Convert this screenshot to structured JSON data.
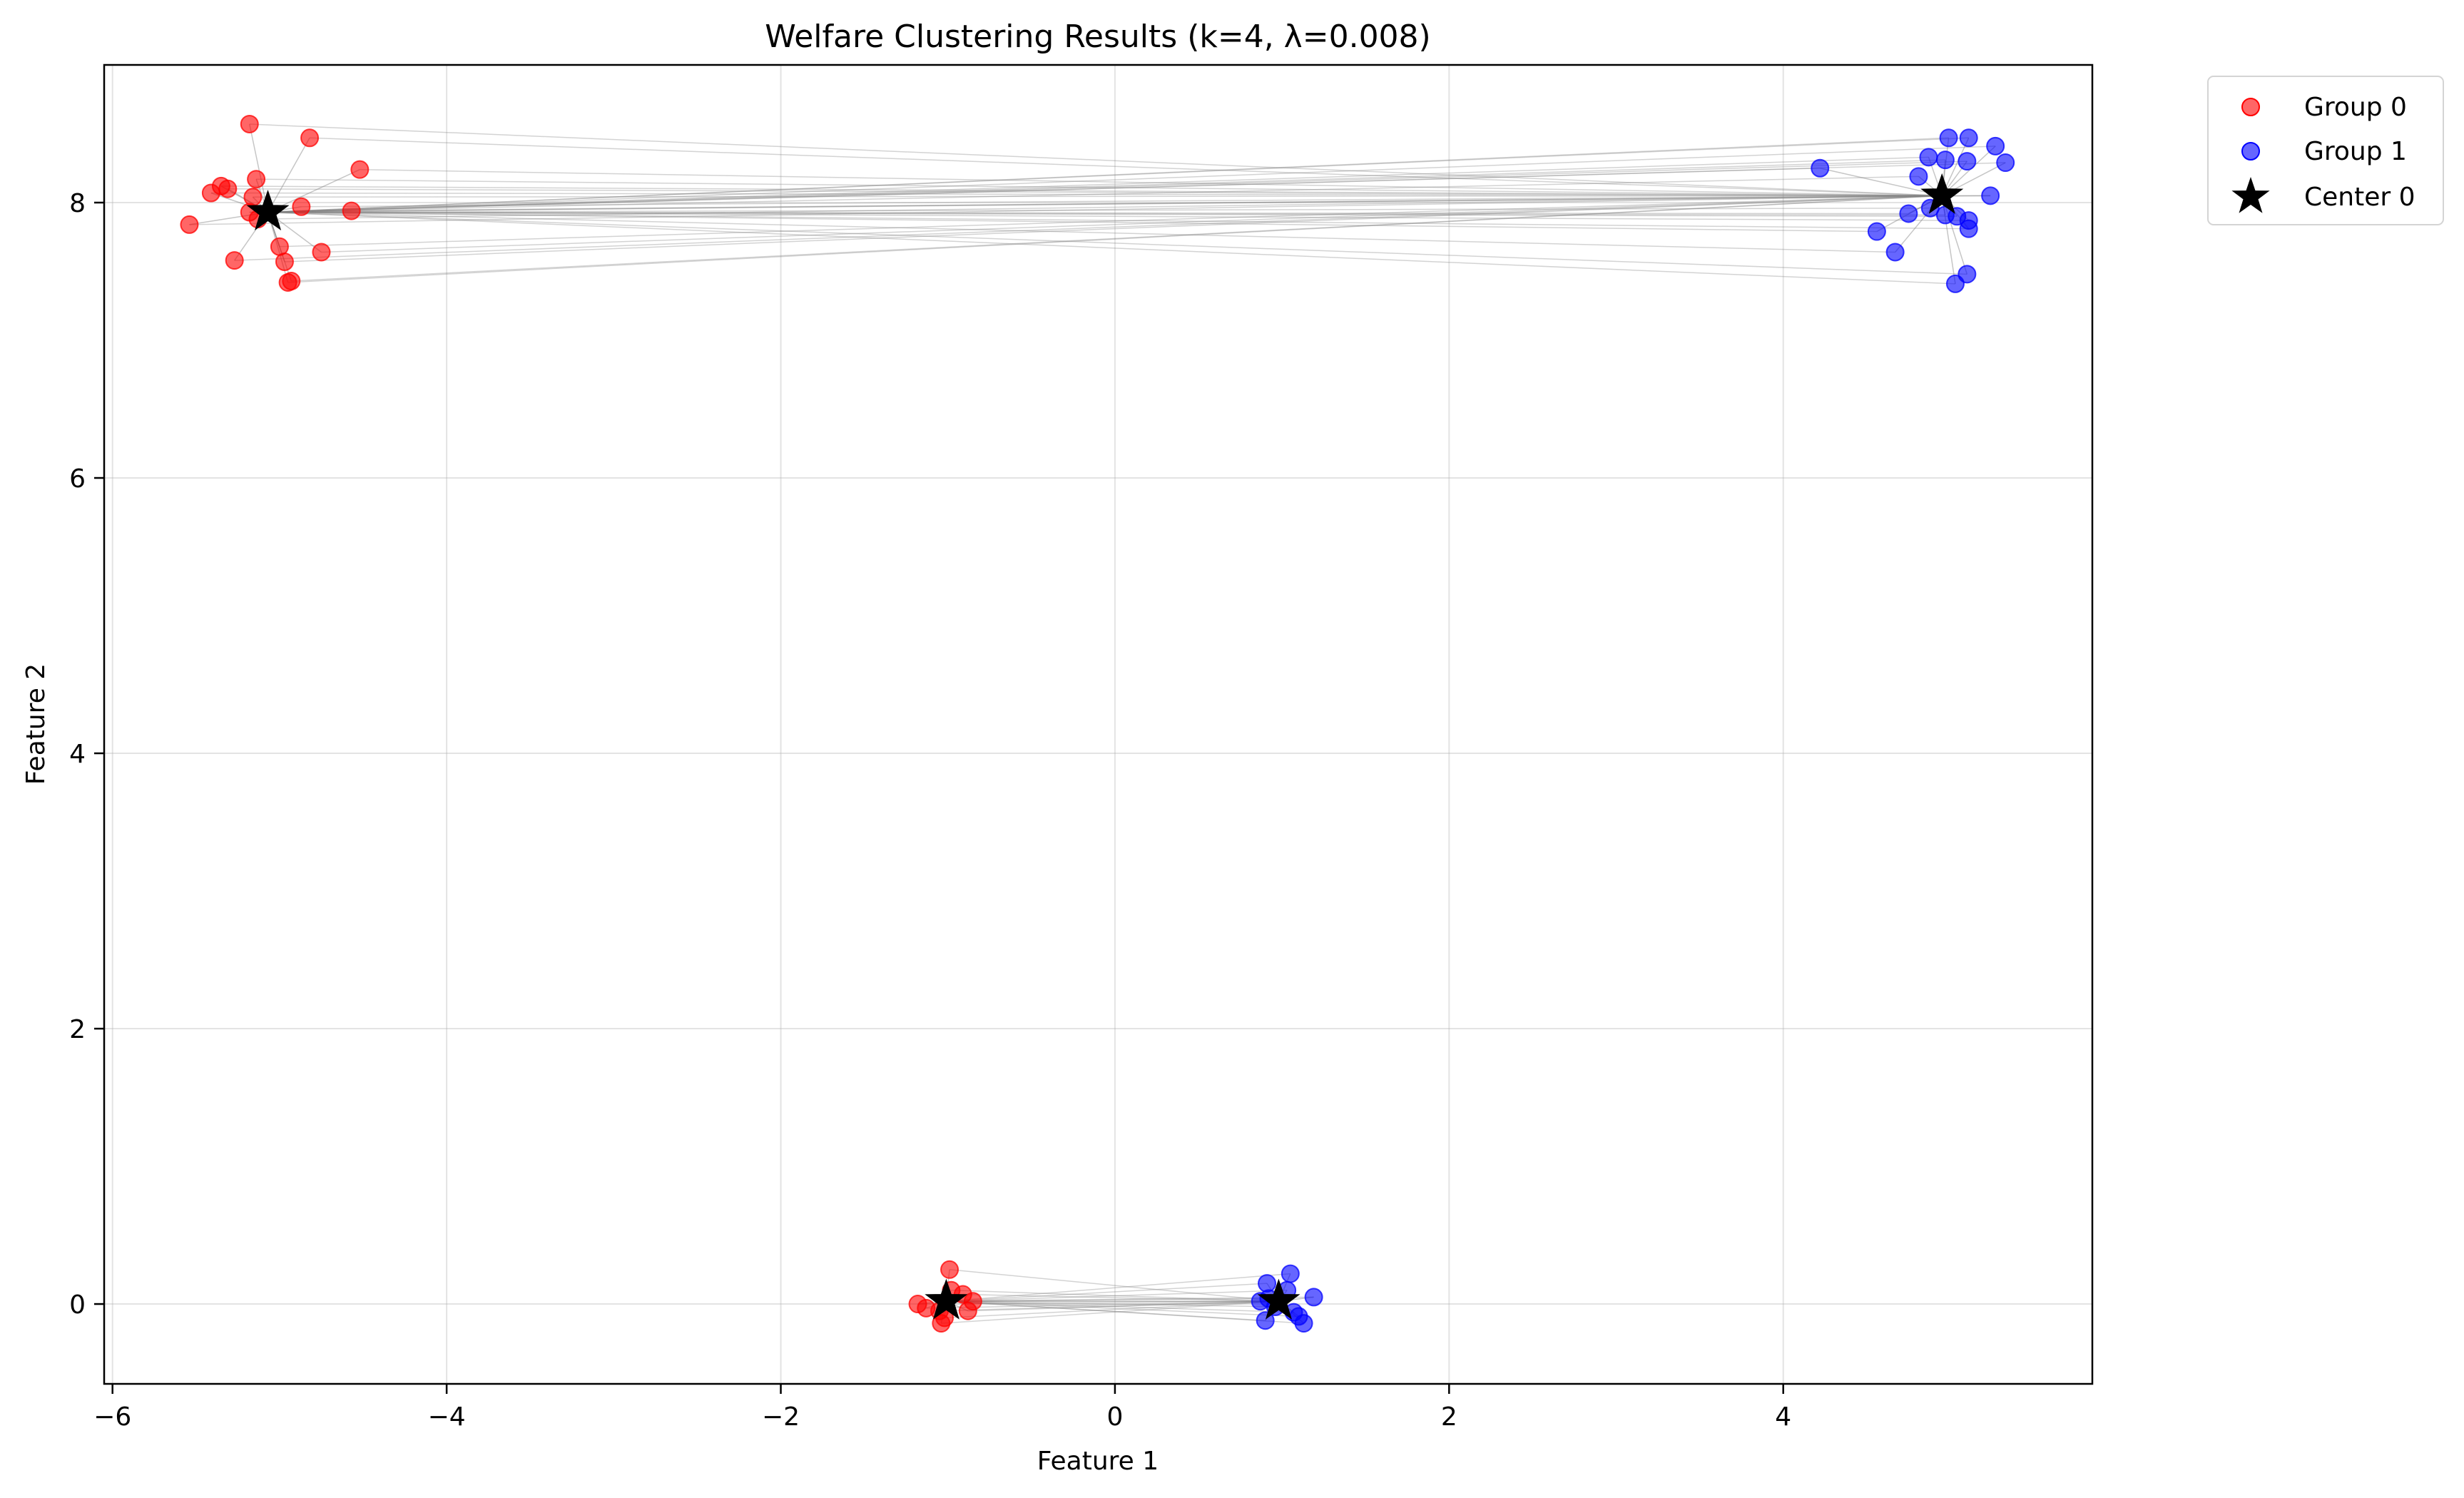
{
  "chart_data": {
    "type": "scatter",
    "title": "Welfare Clustering Results (k=4, λ=0.008)",
    "xlabel": "Feature 1",
    "ylabel": "Feature 2",
    "xlim": [
      -6.05,
      5.85
    ],
    "ylim": [
      -0.58,
      9.0
    ],
    "x_ticks": [
      {
        "value": -6,
        "label": "−6"
      },
      {
        "value": -4,
        "label": "−4"
      },
      {
        "value": -2,
        "label": "−2"
      },
      {
        "value": 0,
        "label": "0"
      },
      {
        "value": 2,
        "label": "2"
      },
      {
        "value": 4,
        "label": "4"
      }
    ],
    "y_ticks": [
      {
        "value": 0,
        "label": "0"
      },
      {
        "value": 2,
        "label": "2"
      },
      {
        "value": 4,
        "label": "4"
      },
      {
        "value": 6,
        "label": "6"
      },
      {
        "value": 8,
        "label": "8"
      }
    ],
    "grid": true,
    "legend_position": "outside-top-right",
    "series": [
      {
        "name": "Group 0",
        "color": "#ff0000",
        "points": [
          {
            "x": -5.18,
            "y": 8.57,
            "c": 0
          },
          {
            "x": -4.82,
            "y": 8.47,
            "c": 0
          },
          {
            "x": -4.52,
            "y": 8.24,
            "c": 0
          },
          {
            "x": -5.14,
            "y": 8.17,
            "c": 0
          },
          {
            "x": -5.35,
            "y": 8.12,
            "c": 0
          },
          {
            "x": -5.31,
            "y": 8.1,
            "c": 0
          },
          {
            "x": -5.41,
            "y": 8.07,
            "c": 0
          },
          {
            "x": -5.16,
            "y": 8.04,
            "c": 0
          },
          {
            "x": -4.87,
            "y": 7.97,
            "c": 0
          },
          {
            "x": -4.57,
            "y": 7.94,
            "c": 0
          },
          {
            "x": -5.18,
            "y": 7.93,
            "c": 0
          },
          {
            "x": -5.13,
            "y": 7.88,
            "c": 0
          },
          {
            "x": -5.54,
            "y": 7.84,
            "c": 0
          },
          {
            "x": -5.0,
            "y": 7.68,
            "c": 0
          },
          {
            "x": -4.75,
            "y": 7.64,
            "c": 0
          },
          {
            "x": -4.97,
            "y": 7.57,
            "c": 0
          },
          {
            "x": -5.27,
            "y": 7.58,
            "c": 0
          },
          {
            "x": -4.93,
            "y": 7.43,
            "c": 0
          },
          {
            "x": -4.95,
            "y": 7.42,
            "c": 0
          },
          {
            "x": -0.99,
            "y": 0.25,
            "c": 2
          },
          {
            "x": -0.98,
            "y": 0.1,
            "c": 2
          },
          {
            "x": -0.91,
            "y": 0.07,
            "c": 2
          },
          {
            "x": -0.85,
            "y": 0.02,
            "c": 2
          },
          {
            "x": -1.18,
            "y": 0.0,
            "c": 2
          },
          {
            "x": -1.13,
            "y": -0.03,
            "c": 2
          },
          {
            "x": -0.88,
            "y": -0.05,
            "c": 2
          },
          {
            "x": -1.05,
            "y": -0.05,
            "c": 2
          },
          {
            "x": -1.02,
            "y": -0.1,
            "c": 2
          },
          {
            "x": -1.04,
            "y": -0.14,
            "c": 2
          }
        ]
      },
      {
        "name": "Group 1",
        "color": "#0000ff",
        "points": [
          {
            "x": 4.99,
            "y": 8.47,
            "c": 1
          },
          {
            "x": 5.11,
            "y": 8.47,
            "c": 1
          },
          {
            "x": 5.27,
            "y": 8.41,
            "c": 1
          },
          {
            "x": 4.87,
            "y": 8.33,
            "c": 1
          },
          {
            "x": 4.97,
            "y": 8.31,
            "c": 1
          },
          {
            "x": 5.1,
            "y": 8.3,
            "c": 1
          },
          {
            "x": 5.33,
            "y": 8.29,
            "c": 1
          },
          {
            "x": 4.22,
            "y": 8.25,
            "c": 1
          },
          {
            "x": 4.81,
            "y": 8.19,
            "c": 1
          },
          {
            "x": 5.24,
            "y": 8.05,
            "c": 1
          },
          {
            "x": 4.88,
            "y": 7.96,
            "c": 1
          },
          {
            "x": 4.75,
            "y": 7.92,
            "c": 1
          },
          {
            "x": 4.97,
            "y": 7.91,
            "c": 1
          },
          {
            "x": 5.04,
            "y": 7.9,
            "c": 1
          },
          {
            "x": 5.11,
            "y": 7.87,
            "c": 1
          },
          {
            "x": 5.11,
            "y": 7.81,
            "c": 1
          },
          {
            "x": 4.56,
            "y": 7.79,
            "c": 1
          },
          {
            "x": 4.67,
            "y": 7.64,
            "c": 1
          },
          {
            "x": 5.1,
            "y": 7.48,
            "c": 1
          },
          {
            "x": 5.03,
            "y": 7.41,
            "c": 1
          },
          {
            "x": 1.05,
            "y": 0.22,
            "c": 3
          },
          {
            "x": 0.91,
            "y": 0.15,
            "c": 3
          },
          {
            "x": 1.03,
            "y": 0.1,
            "c": 3
          },
          {
            "x": 1.19,
            "y": 0.05,
            "c": 3
          },
          {
            "x": 0.92,
            "y": 0.04,
            "c": 3
          },
          {
            "x": 0.87,
            "y": 0.02,
            "c": 3
          },
          {
            "x": 0.96,
            "y": -0.02,
            "c": 3
          },
          {
            "x": 1.07,
            "y": -0.06,
            "c": 3
          },
          {
            "x": 1.1,
            "y": -0.09,
            "c": 3
          },
          {
            "x": 0.9,
            "y": -0.12,
            "c": 3
          },
          {
            "x": 1.13,
            "y": -0.14,
            "c": 3
          }
        ]
      }
    ],
    "centers_legend_name": "Center 0",
    "centers": [
      {
        "x": -5.07,
        "y": 7.93
      },
      {
        "x": 4.95,
        "y": 8.05
      },
      {
        "x": -1.01,
        "y": 0.02
      },
      {
        "x": 0.98,
        "y": 0.02
      }
    ]
  }
}
